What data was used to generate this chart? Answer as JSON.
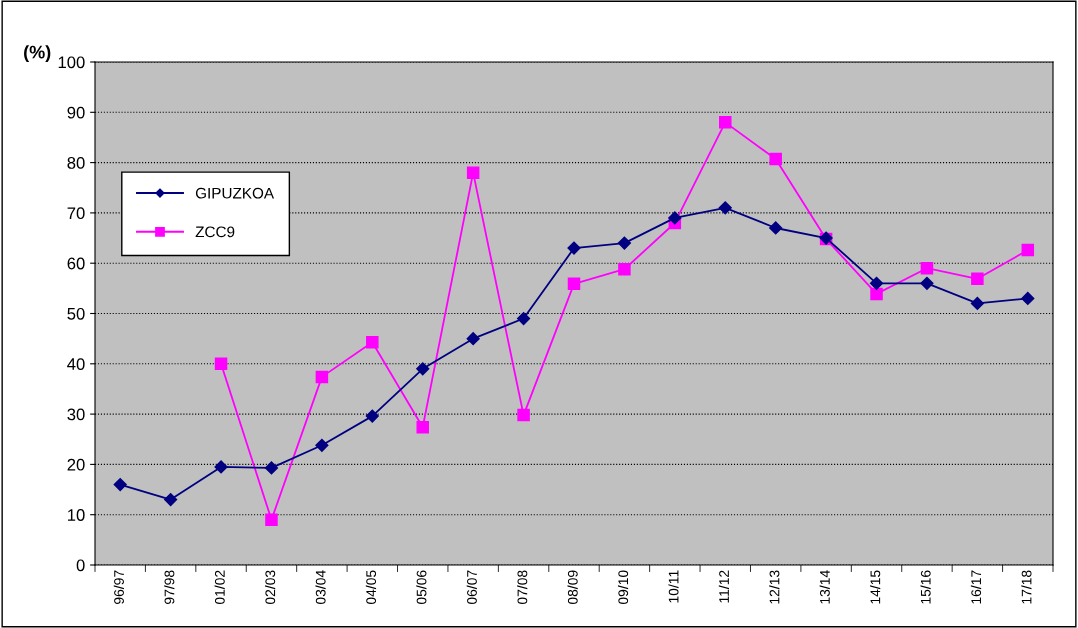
{
  "chart_data": {
    "type": "line",
    "ylabel": "(%)",
    "categories": [
      "96/97",
      "97/98",
      "01/02",
      "02/03",
      "03/04",
      "04/05",
      "05/06",
      "06/07",
      "07/08",
      "08/09",
      "09/10",
      "10/11",
      "11/12",
      "12/13",
      "13/14",
      "14/15",
      "15/16",
      "16/17",
      "17/18"
    ],
    "series": [
      {
        "name": "GIPUZKOA",
        "color": "#000080",
        "marker": "diamond",
        "values": [
          16,
          13,
          19.5,
          19.3,
          23.8,
          29.6,
          39,
          45,
          49,
          63,
          64,
          69,
          71,
          67,
          65,
          56,
          56,
          52,
          53
        ]
      },
      {
        "name": "ZCC9",
        "color": "#ff00ff",
        "marker": "square",
        "values": [
          null,
          null,
          40,
          9,
          37.4,
          44.3,
          27.4,
          78,
          29.8,
          55.9,
          58.8,
          68,
          88,
          80.7,
          64.8,
          53.9,
          59,
          56.9,
          62.6
        ]
      }
    ],
    "ylim": [
      0,
      100
    ],
    "yticks": [
      0,
      10,
      20,
      30,
      40,
      50,
      60,
      70,
      80,
      90,
      100
    ],
    "grid": "y",
    "legend": "left",
    "line_style": "solid"
  }
}
